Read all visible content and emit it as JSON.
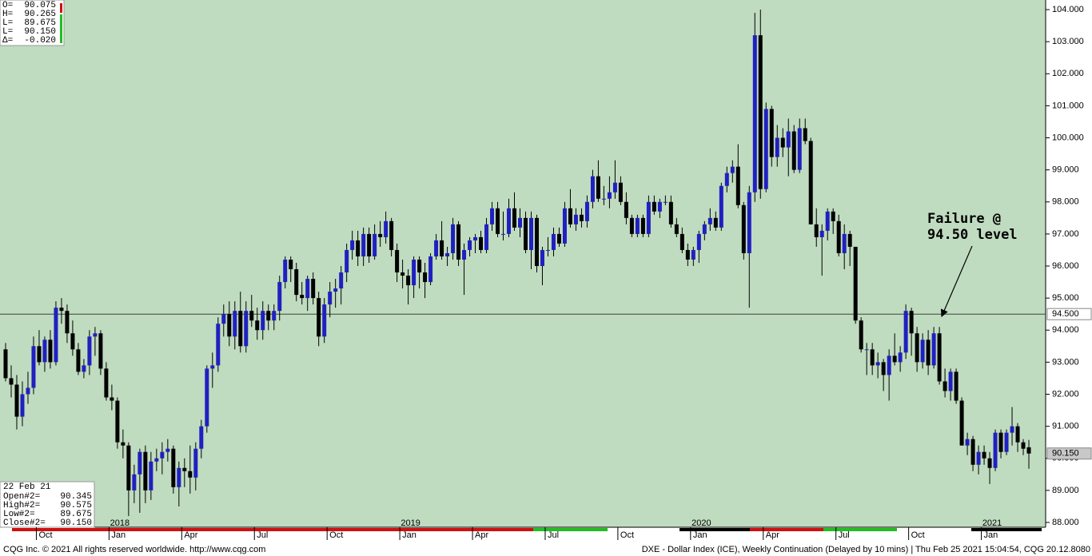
{
  "chart_data": {
    "type": "candlestick",
    "up_color": "#2020c0",
    "down_color": "#000000",
    "background": "#c0dcc0",
    "xlim": [
      -1,
      186
    ],
    "ylim": [
      87.85,
      104.3
    ],
    "yticks": [
      {
        "value": 88,
        "label": "88.000"
      },
      {
        "value": 89,
        "label": "89.000"
      },
      {
        "value": 90,
        "label": "90.000"
      },
      {
        "value": 91,
        "label": "91.000"
      },
      {
        "value": 92,
        "label": "92.000"
      },
      {
        "value": 93,
        "label": "93.000"
      },
      {
        "value": 94,
        "label": "94.000"
      },
      {
        "value": 95,
        "label": "95.000"
      },
      {
        "value": 96,
        "label": "96.000"
      },
      {
        "value": 97,
        "label": "97.000"
      },
      {
        "value": 98,
        "label": "98.000"
      },
      {
        "value": 99,
        "label": "99.000"
      },
      {
        "value": 100,
        "label": "100.000"
      },
      {
        "value": 101,
        "label": "101.000"
      },
      {
        "value": 102,
        "label": "102.000"
      },
      {
        "value": 103,
        "label": "103.000"
      },
      {
        "value": 104,
        "label": "104.000"
      }
    ],
    "xticks": [
      {
        "value": 6,
        "label": "Oct"
      },
      {
        "value": 19,
        "label": "Jan"
      },
      {
        "value": 32,
        "label": "Apr"
      },
      {
        "value": 45,
        "label": "Jul"
      },
      {
        "value": 58,
        "label": "Oct"
      },
      {
        "value": 71,
        "label": "Jan"
      },
      {
        "value": 84,
        "label": "Apr"
      },
      {
        "value": 97,
        "label": "Jul"
      },
      {
        "value": 110,
        "label": "Oct"
      },
      {
        "value": 123,
        "label": "Jan"
      },
      {
        "value": 136,
        "label": "Apr"
      },
      {
        "value": 149,
        "label": "Jul"
      },
      {
        "value": 162,
        "label": "Oct"
      },
      {
        "value": 175,
        "label": "Jan"
      }
    ],
    "year_labels": [
      {
        "value": 19,
        "label": "2018"
      },
      {
        "value": 71,
        "label": "2019"
      },
      {
        "value": 123,
        "label": "2020"
      },
      {
        "value": 175,
        "label": "2021"
      }
    ],
    "reference_line": {
      "value": 94.5,
      "label": "94.500"
    },
    "last_price": {
      "value": 90.15,
      "label": "90.150"
    },
    "annotation": [
      "Failure @",
      "94.50 level"
    ],
    "info_box": [
      {
        "label": "O=",
        "value": "90.075"
      },
      {
        "label": "H=",
        "value": "90.265"
      },
      {
        "label": "L=",
        "value": "89.675"
      },
      {
        "label": "L=",
        "value": "90.150"
      },
      {
        "label": "Δ=",
        "value": "-0.020"
      }
    ],
    "cursor_box": {
      "date": "22 Feb 21",
      "rows": [
        {
          "label": "Open#2=",
          "value": "90.345"
        },
        {
          "label": "High#2=",
          "value": "90.575"
        },
        {
          "label": "Low#2=",
          "value": "89.675"
        },
        {
          "label": "Close#2=",
          "value": "90.150"
        }
      ]
    },
    "footer_left": "CQG Inc. © 2021 All rights reserved worldwide. http://www.cqg.com",
    "footer_right": "DXE - Dollar Index (ICE), Weekly Continuation (Delayed by 10 mins) | Thu Feb 25 2021 15:04:54, CQG 20.12.8080",
    "candles": [
      [
        93.4,
        93.6,
        92.4,
        92.5
      ],
      [
        92.5,
        92.9,
        91.9,
        92.3
      ],
      [
        92.3,
        92.6,
        90.9,
        91.3
      ],
      [
        91.3,
        92.4,
        91.0,
        92.0
      ],
      [
        92.0,
        92.7,
        91.7,
        92.2
      ],
      [
        92.2,
        93.8,
        92.0,
        93.5
      ],
      [
        93.5,
        94.0,
        92.9,
        93.0
      ],
      [
        93.0,
        93.8,
        92.7,
        93.7
      ],
      [
        93.7,
        94.0,
        92.8,
        93.0
      ],
      [
        93.0,
        94.9,
        92.9,
        94.7
      ],
      [
        94.7,
        95.0,
        94.2,
        94.6
      ],
      [
        94.6,
        94.8,
        93.6,
        93.9
      ],
      [
        93.9,
        94.3,
        93.2,
        93.4
      ],
      [
        93.4,
        93.6,
        92.6,
        92.7
      ],
      [
        92.7,
        93.1,
        92.5,
        92.9
      ],
      [
        92.9,
        94.0,
        92.6,
        93.8
      ],
      [
        93.8,
        94.1,
        93.2,
        93.9
      ],
      [
        93.9,
        94.0,
        92.6,
        92.8
      ],
      [
        92.8,
        93.0,
        91.8,
        91.9
      ],
      [
        91.9,
        92.3,
        91.5,
        91.8
      ],
      [
        91.8,
        91.9,
        90.3,
        90.5
      ],
      [
        90.5,
        90.9,
        90.0,
        90.4
      ],
      [
        90.4,
        90.5,
        88.2,
        89.0
      ],
      [
        89.0,
        89.8,
        88.6,
        89.5
      ],
      [
        89.5,
        90.3,
        88.3,
        90.2
      ],
      [
        90.2,
        90.4,
        88.6,
        89.0
      ],
      [
        89.0,
        90.2,
        88.7,
        89.9
      ],
      [
        89.9,
        90.3,
        89.6,
        90.0
      ],
      [
        90.0,
        90.5,
        89.5,
        90.2
      ],
      [
        90.2,
        90.6,
        89.9,
        90.3
      ],
      [
        90.3,
        90.4,
        88.9,
        89.1
      ],
      [
        89.1,
        89.9,
        88.5,
        89.7
      ],
      [
        89.7,
        90.0,
        89.1,
        89.6
      ],
      [
        89.6,
        90.4,
        88.9,
        89.4
      ],
      [
        89.4,
        90.5,
        89.0,
        90.3
      ],
      [
        90.3,
        91.2,
        90.0,
        91.0
      ],
      [
        91.0,
        92.9,
        90.8,
        92.8
      ],
      [
        92.8,
        93.3,
        92.2,
        92.9
      ],
      [
        92.9,
        94.4,
        92.7,
        94.2
      ],
      [
        94.2,
        94.8,
        93.8,
        94.5
      ],
      [
        94.5,
        94.9,
        93.5,
        93.8
      ],
      [
        93.8,
        94.9,
        93.4,
        94.6
      ],
      [
        94.6,
        95.2,
        93.3,
        93.5
      ],
      [
        93.5,
        94.9,
        93.3,
        94.6
      ],
      [
        94.6,
        95.1,
        94.1,
        94.3
      ],
      [
        94.3,
        94.7,
        93.7,
        94.0
      ],
      [
        94.0,
        94.9,
        93.7,
        94.6
      ],
      [
        94.6,
        94.8,
        94.0,
        94.3
      ],
      [
        94.3,
        94.8,
        94.0,
        94.6
      ],
      [
        94.6,
        95.7,
        94.3,
        95.5
      ],
      [
        95.5,
        96.3,
        95.3,
        96.2
      ],
      [
        96.2,
        96.3,
        95.5,
        95.9
      ],
      [
        95.9,
        96.1,
        94.9,
        95.1
      ],
      [
        95.1,
        95.5,
        94.8,
        95.0
      ],
      [
        95.0,
        95.7,
        94.6,
        95.6
      ],
      [
        95.6,
        95.8,
        94.8,
        95.0
      ],
      [
        95.0,
        95.2,
        93.5,
        93.8
      ],
      [
        93.8,
        95.0,
        93.6,
        94.8
      ],
      [
        94.8,
        95.5,
        94.4,
        95.2
      ],
      [
        95.2,
        95.6,
        94.7,
        95.3
      ],
      [
        95.3,
        96.0,
        94.8,
        95.8
      ],
      [
        95.8,
        96.7,
        95.5,
        96.5
      ],
      [
        96.5,
        97.1,
        96.2,
        96.8
      ],
      [
        96.8,
        97.1,
        96.0,
        96.3
      ],
      [
        96.3,
        97.2,
        96.0,
        97.0
      ],
      [
        97.0,
        97.2,
        96.1,
        96.3
      ],
      [
        96.3,
        97.3,
        96.2,
        97.0
      ],
      [
        97.0,
        97.4,
        96.6,
        96.9
      ],
      [
        96.9,
        97.7,
        96.7,
        97.4
      ],
      [
        97.4,
        97.5,
        96.3,
        96.5
      ],
      [
        96.5,
        96.7,
        95.5,
        95.8
      ],
      [
        95.8,
        96.2,
        95.3,
        95.7
      ],
      [
        95.7,
        95.9,
        94.8,
        95.4
      ],
      [
        95.4,
        96.3,
        95.0,
        96.2
      ],
      [
        96.2,
        96.3,
        95.3,
        95.8
      ],
      [
        95.8,
        96.1,
        95.0,
        95.5
      ],
      [
        95.5,
        96.4,
        95.4,
        96.3
      ],
      [
        96.3,
        97.0,
        96.2,
        96.8
      ],
      [
        96.8,
        97.4,
        96.2,
        96.3
      ],
      [
        96.3,
        96.6,
        96.0,
        96.4
      ],
      [
        96.4,
        97.5,
        96.2,
        97.3
      ],
      [
        97.3,
        97.4,
        96.0,
        96.2
      ],
      [
        96.2,
        96.7,
        95.1,
        96.5
      ],
      [
        96.5,
        96.9,
        96.3,
        96.8
      ],
      [
        96.8,
        97.0,
        96.4,
        96.9
      ],
      [
        96.9,
        97.1,
        96.4,
        96.5
      ],
      [
        96.5,
        97.5,
        96.4,
        97.3
      ],
      [
        97.3,
        98.0,
        97.1,
        97.8
      ],
      [
        97.8,
        98.0,
        96.9,
        97.0
      ],
      [
        97.0,
        97.7,
        96.8,
        97.0
      ],
      [
        97.0,
        98.1,
        96.9,
        97.8
      ],
      [
        97.8,
        98.3,
        97.1,
        97.2
      ],
      [
        97.2,
        97.8,
        96.9,
        97.5
      ],
      [
        97.5,
        97.7,
        96.4,
        96.5
      ],
      [
        96.5,
        97.7,
        95.9,
        97.5
      ],
      [
        97.5,
        97.6,
        95.8,
        96.0
      ],
      [
        96.0,
        96.6,
        95.4,
        96.5
      ],
      [
        96.5,
        96.9,
        96.3,
        96.5
      ],
      [
        96.5,
        97.2,
        96.3,
        97.0
      ],
      [
        97.0,
        97.2,
        96.6,
        96.7
      ],
      [
        96.7,
        98.0,
        96.6,
        97.8
      ],
      [
        97.8,
        98.4,
        97.2,
        97.3
      ],
      [
        97.3,
        97.8,
        97.1,
        97.6
      ],
      [
        97.6,
        97.8,
        97.2,
        97.4
      ],
      [
        97.4,
        98.2,
        97.2,
        98.0
      ],
      [
        98.0,
        99.0,
        97.8,
        98.8
      ],
      [
        98.8,
        99.3,
        98.0,
        98.1
      ],
      [
        98.1,
        98.5,
        97.9,
        98.1
      ],
      [
        98.1,
        98.8,
        97.8,
        98.3
      ],
      [
        98.3,
        99.3,
        98.1,
        98.6
      ],
      [
        98.6,
        98.8,
        97.9,
        98.0
      ],
      [
        98.0,
        98.3,
        97.3,
        97.5
      ],
      [
        97.5,
        97.6,
        96.9,
        97.0
      ],
      [
        97.0,
        97.6,
        96.9,
        97.5
      ],
      [
        97.5,
        97.6,
        96.9,
        97.0
      ],
      [
        97.0,
        98.2,
        96.9,
        98.0
      ],
      [
        98.0,
        98.2,
        97.6,
        97.7
      ],
      [
        97.7,
        98.1,
        97.5,
        98.0
      ],
      [
        98.0,
        98.2,
        97.9,
        98.0
      ],
      [
        98.0,
        98.2,
        97.2,
        97.3
      ],
      [
        97.3,
        97.5,
        96.9,
        97.0
      ],
      [
        97.0,
        97.2,
        96.4,
        96.5
      ],
      [
        96.5,
        96.7,
        96.0,
        96.2
      ],
      [
        96.2,
        96.6,
        96.0,
        96.5
      ],
      [
        96.5,
        97.1,
        96.1,
        97.0
      ],
      [
        97.0,
        97.4,
        96.8,
        97.3
      ],
      [
        97.3,
        97.8,
        97.1,
        97.5
      ],
      [
        97.5,
        97.7,
        97.1,
        97.2
      ],
      [
        97.2,
        98.6,
        97.1,
        98.5
      ],
      [
        98.5,
        99.1,
        98.3,
        98.9
      ],
      [
        98.9,
        99.3,
        98.6,
        99.1
      ],
      [
        99.1,
        99.8,
        97.8,
        97.9
      ],
      [
        97.9,
        98.0,
        96.2,
        96.4
      ],
      [
        96.4,
        98.5,
        94.7,
        98.3
      ],
      [
        98.3,
        103.9,
        98.0,
        103.2
      ],
      [
        103.2,
        104.0,
        98.1,
        98.4
      ],
      [
        98.4,
        101.1,
        98.3,
        100.9
      ],
      [
        100.9,
        101.0,
        99.1,
        99.4
      ],
      [
        99.4,
        100.4,
        99.1,
        100.0
      ],
      [
        100.0,
        100.3,
        99.4,
        99.7
      ],
      [
        99.7,
        100.6,
        98.8,
        100.2
      ],
      [
        100.2,
        100.4,
        98.9,
        99.0
      ],
      [
        99.0,
        100.6,
        98.9,
        100.3
      ],
      [
        100.3,
        100.6,
        99.8,
        99.9
      ],
      [
        99.9,
        100.0,
        97.3,
        97.3
      ],
      [
        97.3,
        97.8,
        96.6,
        96.9
      ],
      [
        96.9,
        97.3,
        95.7,
        97.1
      ],
      [
        97.1,
        97.8,
        96.8,
        97.7
      ],
      [
        97.7,
        97.8,
        97.0,
        97.4
      ],
      [
        97.4,
        97.6,
        96.3,
        96.4
      ],
      [
        96.4,
        97.3,
        95.9,
        97.0
      ],
      [
        97.0,
        97.1,
        96.0,
        96.6
      ],
      [
        96.6,
        96.6,
        94.2,
        94.3
      ],
      [
        94.3,
        94.4,
        93.3,
        93.4
      ],
      [
        93.4,
        93.6,
        92.6,
        93.4
      ],
      [
        93.4,
        93.6,
        92.6,
        92.9
      ],
      [
        92.9,
        93.3,
        92.5,
        93.0
      ],
      [
        93.0,
        93.1,
        92.1,
        92.6
      ],
      [
        92.6,
        93.4,
        91.8,
        93.2
      ],
      [
        93.2,
        93.9,
        92.9,
        93.0
      ],
      [
        93.0,
        93.5,
        92.7,
        93.3
      ],
      [
        93.3,
        94.8,
        93.1,
        94.6
      ],
      [
        94.6,
        94.7,
        93.2,
        93.9
      ],
      [
        93.9,
        94.1,
        92.7,
        93.0
      ],
      [
        93.0,
        93.9,
        92.8,
        93.7
      ],
      [
        93.7,
        94.0,
        92.6,
        92.9
      ],
      [
        92.9,
        94.1,
        92.8,
        93.9
      ],
      [
        93.9,
        94.1,
        92.3,
        92.4
      ],
      [
        92.4,
        92.8,
        91.9,
        92.1
      ],
      [
        92.1,
        92.8,
        91.8,
        92.7
      ],
      [
        92.7,
        92.8,
        91.7,
        91.8
      ],
      [
        91.8,
        91.9,
        90.4,
        90.4
      ],
      [
        90.4,
        90.8,
        90.1,
        90.6
      ],
      [
        90.6,
        90.7,
        89.6,
        89.8
      ],
      [
        89.8,
        90.4,
        89.5,
        90.2
      ],
      [
        90.2,
        90.4,
        89.8,
        90.0
      ],
      [
        90.0,
        90.2,
        89.2,
        89.7
      ],
      [
        89.7,
        90.9,
        89.6,
        90.8
      ],
      [
        90.8,
        90.9,
        90.0,
        90.2
      ],
      [
        90.2,
        90.9,
        90.1,
        90.8
      ],
      [
        90.8,
        91.6,
        90.4,
        91.0
      ],
      [
        91.0,
        91.1,
        90.2,
        90.5
      ],
      [
        90.5,
        90.6,
        90.1,
        90.3
      ],
      [
        90.345,
        90.575,
        89.675,
        90.15
      ]
    ]
  }
}
